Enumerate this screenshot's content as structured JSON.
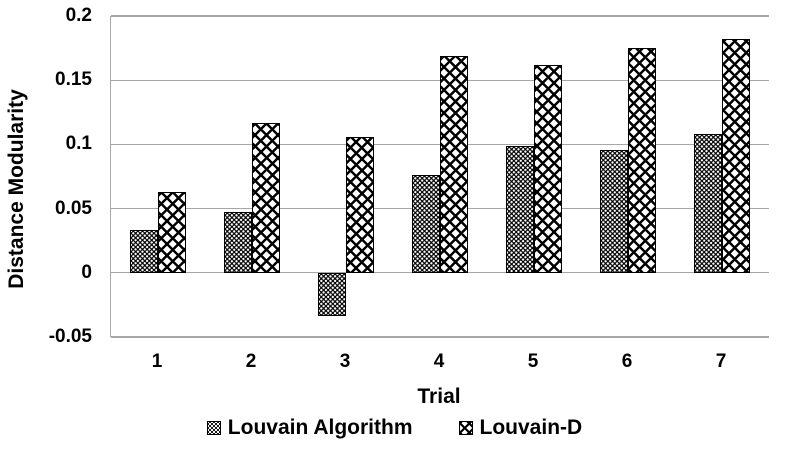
{
  "chart_data": {
    "type": "bar",
    "title": "",
    "xlabel": "Trial",
    "ylabel": "Distance Modularity",
    "categories": [
      "1",
      "2",
      "3",
      "4",
      "5",
      "6",
      "7"
    ],
    "series": [
      {
        "name": "Louvain Algorithm",
        "pattern": "black-with-white-dots",
        "values": [
          0.033,
          0.047,
          -0.034,
          0.076,
          0.099,
          0.096,
          0.108
        ]
      },
      {
        "name": "Louvain-D",
        "pattern": "white-with-black-crosshatch",
        "values": [
          0.063,
          0.117,
          0.106,
          0.169,
          0.162,
          0.175,
          0.182
        ]
      }
    ],
    "ylim": [
      -0.05,
      0.2
    ],
    "ytick_labels": [
      "0.2",
      "0.15",
      "0.1",
      "0.05",
      "0",
      "-0.05"
    ],
    "ytick_values": [
      0.2,
      0.15,
      0.1,
      0.05,
      0,
      -0.05
    ],
    "grid": true,
    "legend_position": "bottom",
    "colors": {
      "gridline": "#a6a6a6",
      "bar_border": "#000000",
      "text": "#000000",
      "background": "#ffffff"
    }
  }
}
